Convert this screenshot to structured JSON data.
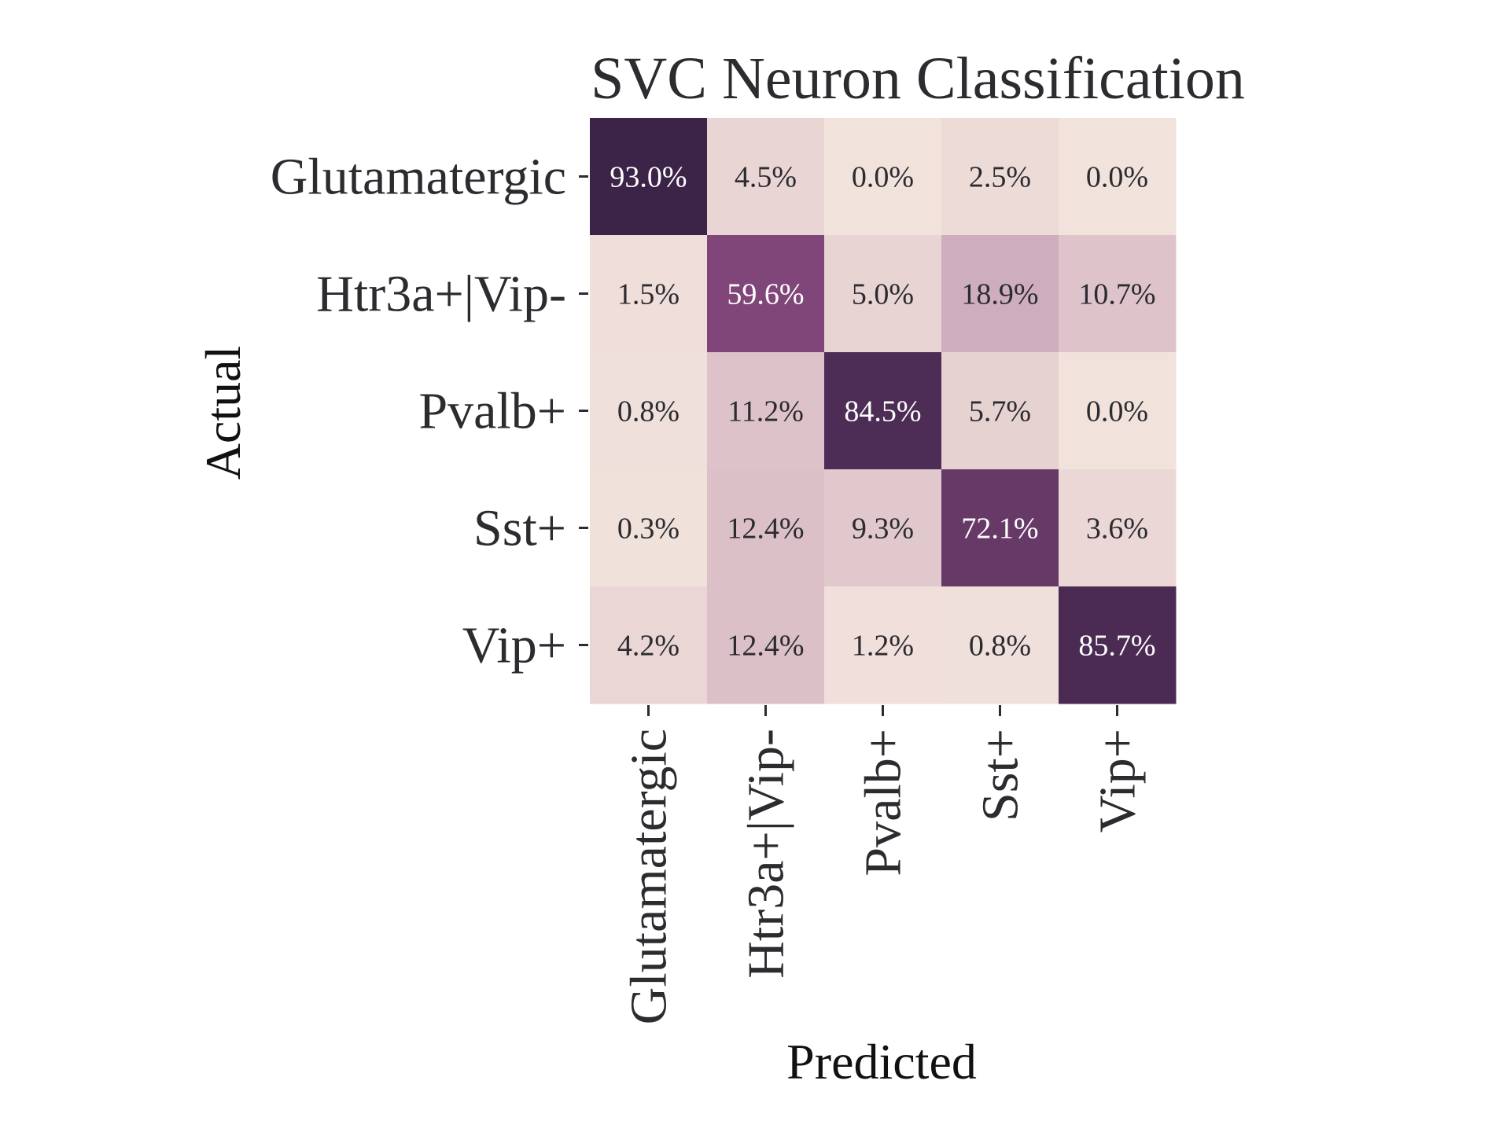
{
  "chart_data": {
    "type": "heatmap",
    "title": "SVC Neuron Classification",
    "xlabel": "Predicted",
    "ylabel": "Actual",
    "x_categories": [
      "Glutamatergic",
      "Htr3a+|Vip-",
      "Pvalb+",
      "Sst+",
      "Vip+"
    ],
    "y_categories": [
      "Glutamatergic",
      "Htr3a+|Vip-",
      "Pvalb+",
      "Sst+",
      "Vip+"
    ],
    "values": [
      [
        93.0,
        4.5,
        0.0,
        2.5,
        0.0
      ],
      [
        1.5,
        59.6,
        5.0,
        18.9,
        10.7
      ],
      [
        0.8,
        11.2,
        84.5,
        5.7,
        0.0
      ],
      [
        0.3,
        12.4,
        9.3,
        72.1,
        3.6
      ],
      [
        4.2,
        12.4,
        1.2,
        0.8,
        85.7
      ]
    ],
    "cell_labels": [
      [
        "93.0%",
        "4.5%",
        "0.0%",
        "2.5%",
        "0.0%"
      ],
      [
        "1.5%",
        "59.6%",
        "5.0%",
        "18.9%",
        "10.7%"
      ],
      [
        "0.8%",
        "11.2%",
        "84.5%",
        "5.7%",
        "0.0%"
      ],
      [
        "0.3%",
        "12.4%",
        "9.3%",
        "72.1%",
        "3.6%"
      ],
      [
        "4.2%",
        "12.4%",
        "1.2%",
        "0.8%",
        "85.7%"
      ]
    ],
    "value_range": [
      0,
      100
    ],
    "colormap": {
      "low": "#f2e2dc",
      "mid": "#8a4a80",
      "high": "#2d1d3e"
    },
    "grid": false,
    "colorbar": false
  }
}
